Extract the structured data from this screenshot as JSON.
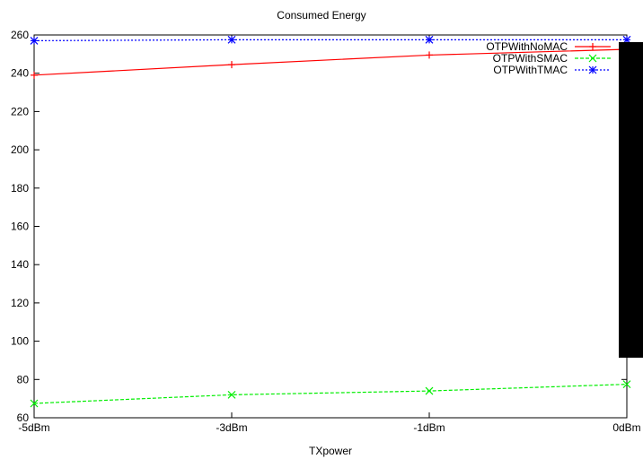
{
  "chart_data": {
    "type": "line",
    "title": "Consumed Energy",
    "xlabel": "TXpower",
    "ylabel": "",
    "categories": [
      "-5dBm",
      "-3dBm",
      "-1dBm",
      "0dBm"
    ],
    "ylim": [
      60,
      260
    ],
    "yticks": [
      60,
      80,
      100,
      120,
      140,
      160,
      180,
      200,
      220,
      240,
      260
    ],
    "grid": false,
    "legend_position": "top-right",
    "series": [
      {
        "name": "OTPWithNoMAC",
        "values": [
          239,
          244.5,
          249.5,
          252.5
        ],
        "color": "#ff0000",
        "dash": "solid",
        "marker": "plus"
      },
      {
        "name": "OTPWithSMAC",
        "values": [
          67.5,
          72,
          74,
          77.5
        ],
        "color": "#00ee00",
        "dash": "dashed",
        "marker": "cross"
      },
      {
        "name": "OTPWithTMAC",
        "values": [
          257,
          257.5,
          257.5,
          257.5
        ],
        "color": "#0000ff",
        "dash": "dotted",
        "marker": "star"
      }
    ]
  }
}
